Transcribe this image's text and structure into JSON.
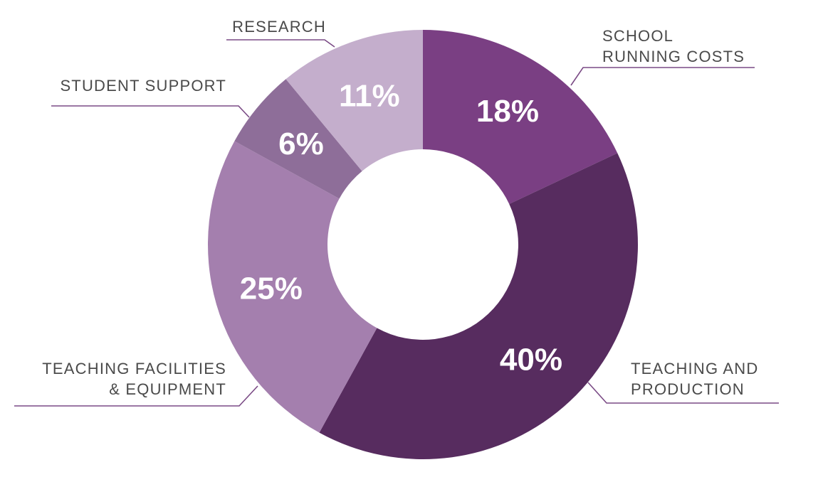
{
  "chart_data": {
    "type": "pie",
    "categories": [
      "SCHOOL RUNNING COSTS",
      "TEACHING AND PRODUCTION",
      "TEACHING FACILITIES & EQUIPMENT",
      "STUDENT SUPPORT",
      "RESEARCH"
    ],
    "values": [
      18,
      40,
      25,
      6,
      11
    ],
    "value_labels": [
      "18%",
      "40%",
      "25%",
      "6%",
      "11%"
    ],
    "label_lines": [
      [
        "SCHOOL",
        "RUNNING COSTS"
      ],
      [
        "TEACHING AND",
        "PRODUCTION"
      ],
      [
        "TEACHING FACILITIES",
        "& EQUIPMENT"
      ],
      [
        "STUDENT SUPPORT"
      ],
      [
        "RESEARCH"
      ]
    ],
    "colors": [
      "#7a3f83",
      "#572c5f",
      "#a47fae",
      "#8e6e99",
      "#c4aecc"
    ],
    "leader_line_color": "#7a4a85",
    "label_color": "#4a4a4a",
    "donut": true
  }
}
